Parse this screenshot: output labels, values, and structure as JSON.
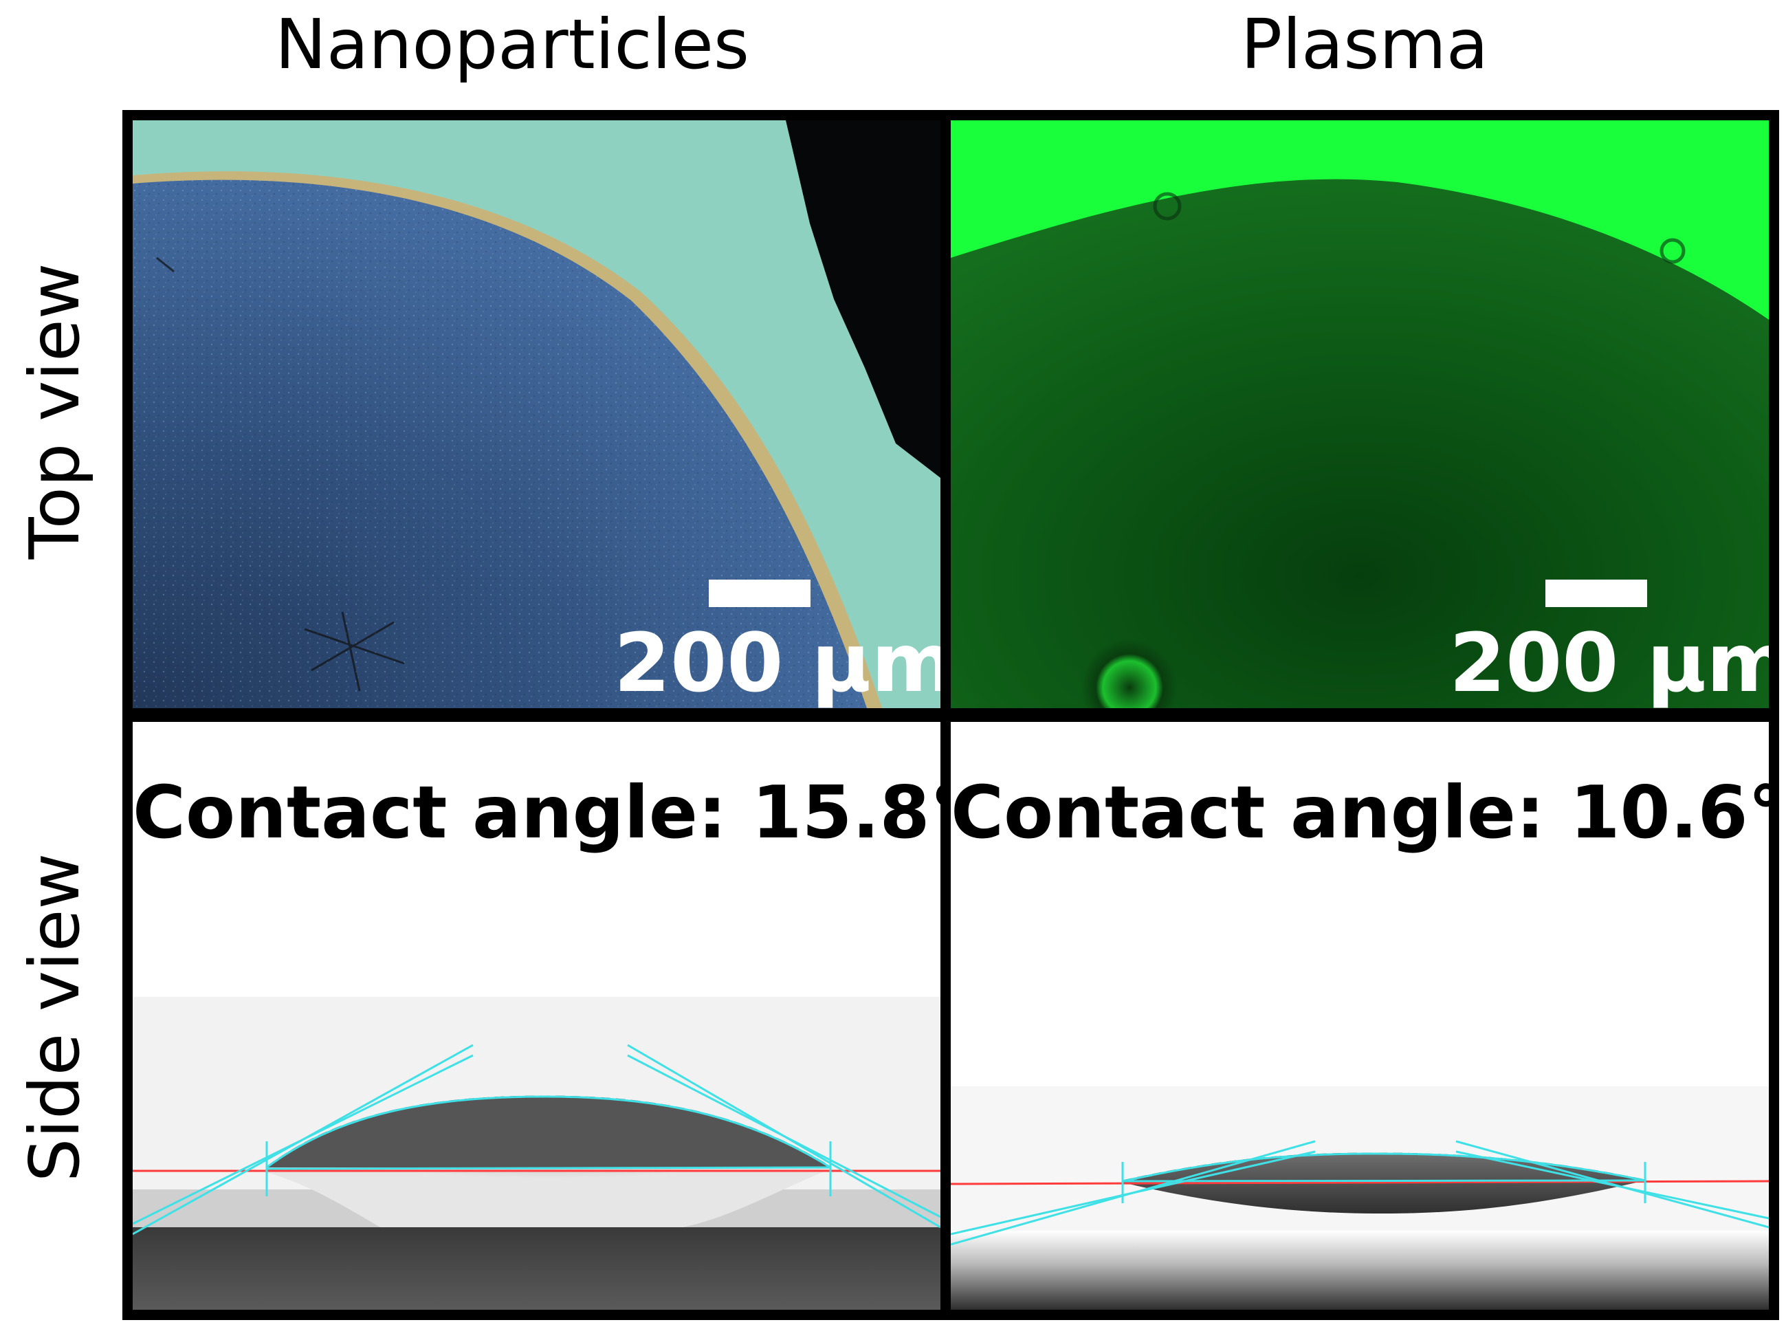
{
  "columns": {
    "left": "Nanoparticles",
    "right": "Plasma"
  },
  "rows": {
    "top": "Top view",
    "bottom": "Side view"
  },
  "panels": {
    "nanoparticles_top": {
      "scale_label": "200 µm"
    },
    "plasma_top": {
      "scale_label": "200 µm"
    },
    "nanoparticles_side": {
      "contact_angle_label": "Contact angle: 15.8°"
    },
    "plasma_side": {
      "contact_angle_label": "Contact angle: 10.6°"
    }
  },
  "colors": {
    "baseline": "#ff3b3b",
    "tangent": "#3fe0e6",
    "plasma_green": "#19ff3c",
    "droplet_blue": "#4a72a8",
    "substrate_teal": "#8ed1c2"
  }
}
